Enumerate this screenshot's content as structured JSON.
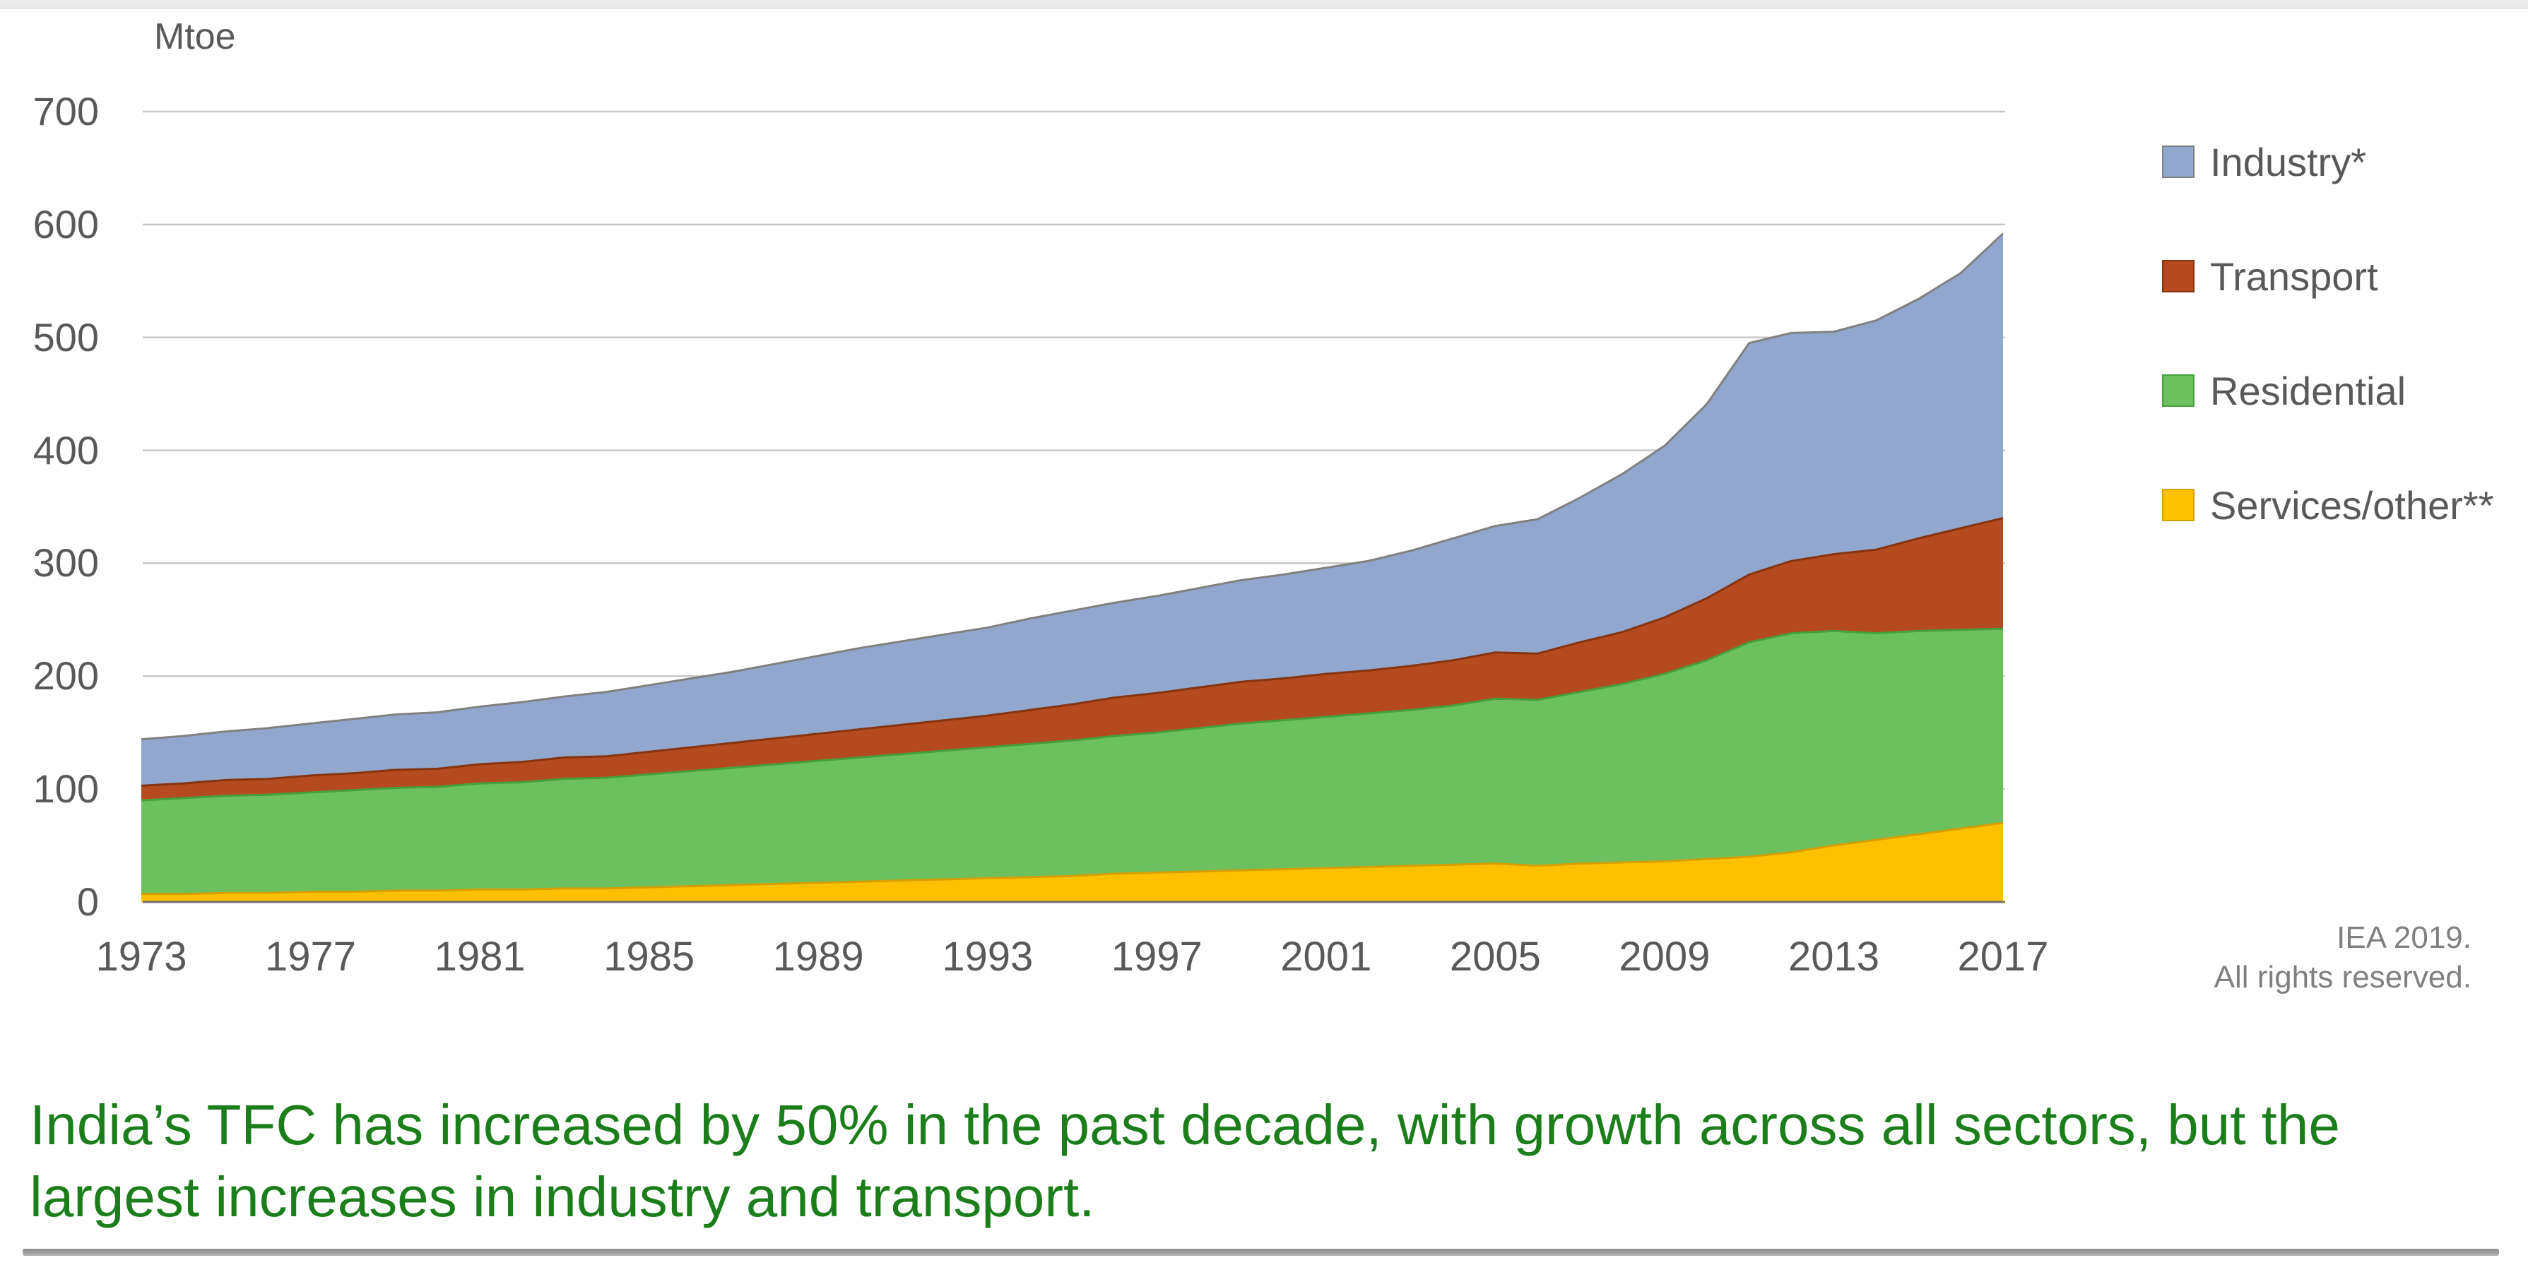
{
  "chart": {
    "unit_label": "Mtoe",
    "attribution": {
      "line1": "IEA 2019.",
      "line2": "All rights reserved."
    }
  },
  "caption": {
    "line1": "India’s TFC has increased by 50% in the past decade, with growth across all sectors, but the",
    "line2": "largest increases in industry and transport."
  },
  "chart_data": {
    "type": "area",
    "stacked": true,
    "unit": "Mtoe",
    "ylabel": "Mtoe",
    "xlabel": "",
    "ylim": [
      0,
      700
    ],
    "y_ticks": [
      0,
      100,
      200,
      300,
      400,
      500,
      600,
      700
    ],
    "x_ticks": [
      1973,
      1977,
      1981,
      1985,
      1989,
      1993,
      1997,
      2001,
      2005,
      2009,
      2013,
      2017
    ],
    "grid": true,
    "legend_position": "right",
    "x": [
      1973,
      1974,
      1975,
      1976,
      1977,
      1978,
      1979,
      1980,
      1981,
      1982,
      1983,
      1984,
      1985,
      1986,
      1987,
      1988,
      1989,
      1990,
      1991,
      1992,
      1993,
      1994,
      1995,
      1996,
      1997,
      1998,
      1999,
      2000,
      2001,
      2002,
      2003,
      2004,
      2005,
      2006,
      2007,
      2008,
      2009,
      2010,
      2011,
      2012,
      2013,
      2014,
      2015,
      2016,
      2017
    ],
    "stack_order_bottom_to_top": [
      "Services/other**",
      "Residential",
      "Transport",
      "Industry*"
    ],
    "series": [
      {
        "name": "Industry*",
        "color": "#92a7cd",
        "edge_color": "#808080",
        "values": [
          41,
          42,
          43,
          45,
          46,
          48,
          49,
          50,
          51,
          53,
          54,
          57,
          59,
          61,
          63,
          66,
          69,
          72,
          74,
          76,
          78,
          81,
          83,
          84,
          86,
          88,
          90,
          92,
          94,
          97,
          102,
          108,
          112,
          119,
          128,
          140,
          152,
          172,
          205,
          202,
          197,
          203,
          212,
          226,
          252
        ]
      },
      {
        "name": "Transport",
        "color": "#b44a1d",
        "edge_color": "#86340f",
        "values": [
          13,
          13,
          14,
          14,
          15,
          15,
          16,
          16,
          17,
          18,
          19,
          19,
          20,
          21,
          22,
          23,
          24,
          25,
          26,
          27,
          28,
          30,
          32,
          34,
          35,
          36,
          37,
          37,
          38,
          38,
          39,
          40,
          41,
          41,
          44,
          46,
          50,
          55,
          60,
          64,
          68,
          74,
          82,
          90,
          98
        ]
      },
      {
        "name": "Residential",
        "color": "#6cc15e",
        "edge_color": "#44a03c",
        "values": [
          83,
          85,
          86,
          87,
          88,
          90,
          91,
          92,
          94,
          95,
          97,
          98,
          100,
          102,
          104,
          106,
          108,
          110,
          112,
          114,
          116,
          118,
          120,
          122,
          124,
          127,
          130,
          132,
          134,
          136,
          138,
          141,
          146,
          147,
          152,
          158,
          166,
          176,
          190,
          194,
          190,
          183,
          180,
          176,
          172
        ]
      },
      {
        "name": "Services/other**",
        "color": "#fdc101",
        "edge_color": "#d79e00",
        "values": [
          7,
          7,
          8,
          8,
          9,
          9,
          10,
          10,
          11,
          11,
          12,
          12,
          13,
          14,
          15,
          16,
          17,
          18,
          19,
          20,
          21,
          22,
          23,
          25,
          26,
          27,
          28,
          29,
          30,
          31,
          32,
          33,
          34,
          32,
          34,
          35,
          36,
          38,
          40,
          44,
          50,
          55,
          60,
          65,
          70
        ]
      }
    ]
  },
  "colors": {
    "gridline": "#c7c7c7",
    "axis_line": "#6f6f6f",
    "tick_text": "#595959",
    "caption_text": "#1b7e1b",
    "attribution_text": "#808080"
  }
}
